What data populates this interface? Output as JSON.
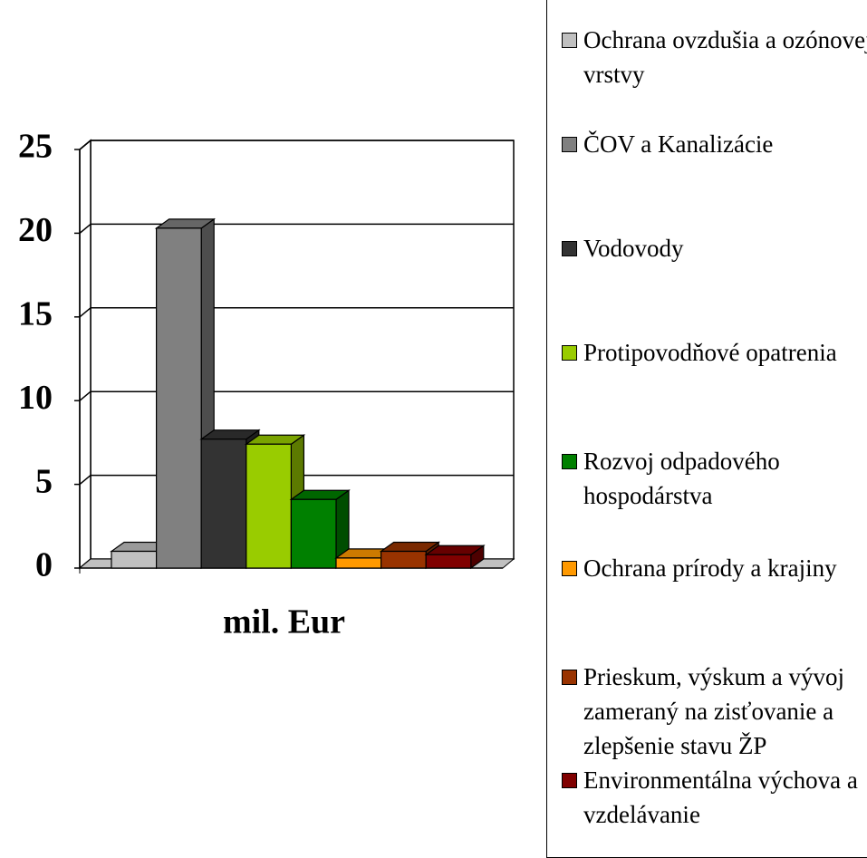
{
  "chart_data": {
    "type": "bar",
    "three_d": true,
    "categories": [
      "mil. Eur"
    ],
    "series": [
      {
        "name": "Ochrana ovzdušia a ozónovej vrstvy",
        "color": "#c0c0c0",
        "values": [
          1.0
        ]
      },
      {
        "name": "ČOV a Kanalizácie",
        "color": "#808080",
        "values": [
          20.3
        ]
      },
      {
        "name": "Vodovody",
        "color": "#333333",
        "values": [
          7.7
        ]
      },
      {
        "name": "Protipovodňové opatrenia",
        "color": "#99cc00",
        "values": [
          7.4
        ]
      },
      {
        "name": "Rozvoj odpadového hospodárstva",
        "color": "#008000",
        "values": [
          4.1
        ]
      },
      {
        "name": "Ochrana prírody a krajiny",
        "color": "#ff9900",
        "values": [
          0.6
        ]
      },
      {
        "name": "Prieskum, výskum a vývoj zameraný na zisťovanie a zlepšenie stavu ŽP",
        "color": "#993300",
        "values": [
          1.0
        ]
      },
      {
        "name": "Environmentálna výchova a vzdelávanie",
        "color": "#800000",
        "values": [
          0.8
        ]
      }
    ],
    "ylim": [
      0,
      25
    ],
    "yticks": [
      0,
      5,
      10,
      15,
      20,
      25
    ],
    "grid": true,
    "legend": "right"
  }
}
